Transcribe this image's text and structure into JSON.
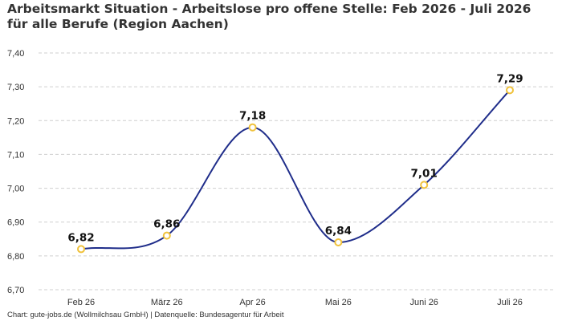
{
  "chart_data": {
    "type": "line",
    "title": "Arbeitsmarkt Situation - Arbeitslose pro offene Stelle: Feb 2026 - Juli 2026 für alle Berufe (Region Aachen)",
    "categories": [
      "Feb 26",
      "März 26",
      "Apr 26",
      "Mai 26",
      "Juni 26",
      "Juli 26"
    ],
    "series": [
      {
        "values": [
          6.82,
          6.86,
          7.18,
          6.84,
          7.01,
          7.29
        ]
      }
    ],
    "data_labels": [
      "6,82",
      "6,86",
      "7,18",
      "6,84",
      "7,01",
      "7,29"
    ],
    "yticks": [
      6.7,
      6.8,
      6.9,
      7.0,
      7.1,
      7.2,
      7.3,
      7.4
    ],
    "ytick_labels": [
      "6,70",
      "6,80",
      "6,90",
      "7,00",
      "7,10",
      "7,20",
      "7,30",
      "7,40"
    ],
    "ylim": [
      6.7,
      7.4
    ],
    "xlabel": "",
    "ylabel": "",
    "grid": "horizontal dashed",
    "legend": "none",
    "line_color": "#1f2d8a",
    "marker_color": "#f0c23c"
  },
  "footer": "Chart: gute-jobs.de (Wollmilchsau GmbH) | Datenquelle: Bundesagentur für Arbeit"
}
